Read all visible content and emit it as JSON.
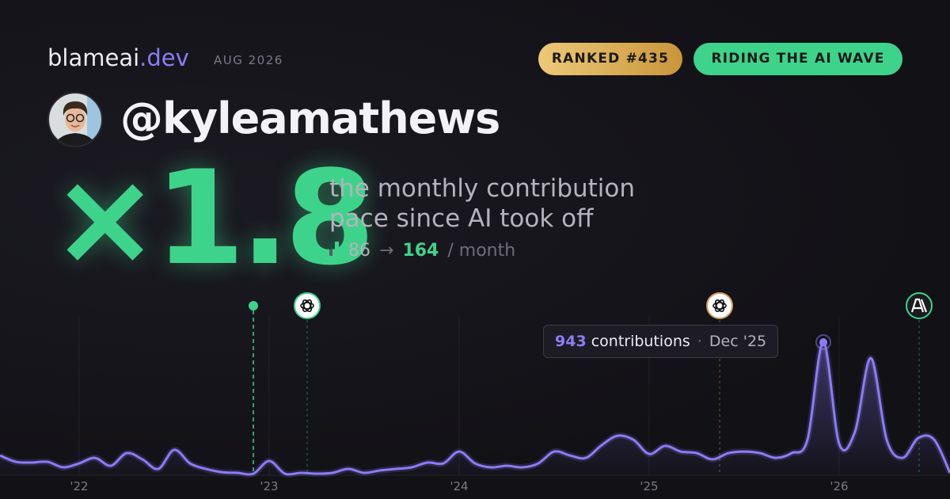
{
  "header": {
    "brand": "blameai",
    "brand_suffix": ".dev",
    "period": "AUG 2026",
    "badges": [
      "RANKED #435",
      "RIDING THE AI WAVE"
    ]
  },
  "profile": {
    "username": "@kyleamathews"
  },
  "hero": {
    "multiplier": "×1.8",
    "caption": [
      "the monthly contribution",
      "pace since AI took off"
    ],
    "before": 86,
    "arrow": "→",
    "after": 164,
    "unit": "/ month"
  },
  "chart_data": {
    "type": "line",
    "categories": [
      null,
      null,
      null,
      null,
      null,
      "'22",
      null,
      null,
      null,
      null,
      null,
      null,
      null,
      null,
      null,
      null,
      null,
      "'23",
      null,
      null,
      null,
      null,
      null,
      null,
      null,
      null,
      null,
      null,
      null,
      "'24",
      null,
      null,
      null,
      null,
      null,
      null,
      null,
      null,
      null,
      null,
      null,
      "'25",
      null,
      null,
      null,
      null,
      null,
      null,
      null,
      null,
      null,
      null,
      null,
      "'26",
      null,
      null,
      null,
      null,
      null,
      null,
      null
    ],
    "series": [
      {
        "name": "contributions",
        "color": "#8b7cf6",
        "values": [
          140,
          95,
          90,
          95,
          56,
          84,
          123,
          67,
          157,
          112,
          45,
          180,
          84,
          45,
          22,
          17,
          11,
          101,
          11,
          17,
          11,
          17,
          45,
          17,
          34,
          45,
          56,
          90,
          84,
          168,
          84,
          56,
          67,
          56,
          84,
          168,
          140,
          123,
          213,
          280,
          252,
          151,
          208,
          168,
          157,
          112,
          157,
          168,
          157,
          123,
          157,
          252,
          943,
          224,
          309,
          830,
          252,
          123,
          264,
          252,
          17
        ]
      }
    ],
    "ylim": [
      0,
      1100
    ],
    "tooltip": {
      "index": 52,
      "label": "contributions",
      "date": "Dec '25"
    }
  }
}
